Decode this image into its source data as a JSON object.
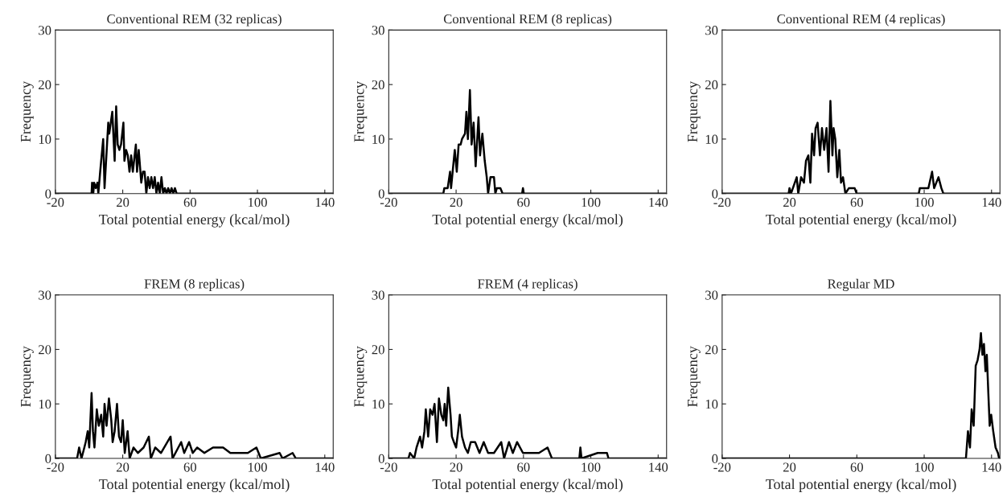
{
  "chart_data": [
    {
      "type": "line",
      "title": "Conventional REM (32 replicas)",
      "xlabel": "Total potential energy (kcal/mol)",
      "ylabel": "Frequency",
      "xlim": [
        -20,
        145
      ],
      "xticks": [
        -20,
        20,
        60,
        100,
        140
      ],
      "ylim": [
        0,
        30
      ],
      "yticks": [
        0,
        10,
        20,
        30
      ],
      "grid": false,
      "legend": false,
      "series": [
        {
          "color": "#000000",
          "x": [
            -20,
            1.5,
            1.8,
            2.5,
            3,
            4,
            5,
            5.5,
            6.6,
            8.4,
            9.2,
            11.4,
            12,
            13.8,
            15.2,
            16.1,
            17,
            18,
            19,
            20.4,
            21,
            22,
            23,
            24,
            25,
            26,
            27.8,
            28.5,
            29.5,
            30.5,
            31,
            32,
            33,
            34,
            35,
            36,
            37,
            38,
            39,
            40,
            41,
            42,
            43,
            44,
            45,
            46,
            47,
            48,
            49,
            50,
            51,
            52,
            145
          ],
          "values": [
            0,
            0,
            2,
            0,
            2,
            1,
            2,
            0,
            4,
            10,
            1,
            13,
            11,
            15,
            6,
            16,
            9,
            8,
            9,
            13,
            6,
            8,
            7,
            4,
            7,
            4,
            9,
            4,
            8,
            4,
            2,
            4,
            4,
            0,
            3,
            1,
            3,
            1,
            3,
            0,
            2,
            0,
            3,
            0,
            1,
            0,
            1,
            0,
            1,
            0,
            1,
            0,
            0
          ]
        }
      ]
    },
    {
      "type": "line",
      "title": "Conventional REM (8 replicas)",
      "xlabel": "Total potential energy (kcal/mol)",
      "ylabel": "Frequency",
      "xlim": [
        -20,
        145
      ],
      "xticks": [
        -20,
        20,
        60,
        100,
        140
      ],
      "ylim": [
        0,
        30
      ],
      "yticks": [
        0,
        10,
        20,
        30
      ],
      "grid": false,
      "legend": false,
      "series": [
        {
          "color": "#000000",
          "x": [
            -20,
            12.4,
            13,
            15,
            16.4,
            17,
            19.2,
            20.4,
            21.5,
            22.7,
            23.5,
            25.3,
            26.1,
            27,
            28.2,
            29.2,
            30.4,
            31.6,
            33.3,
            34.2,
            35.6,
            37,
            38.2,
            39,
            40.4,
            42.5,
            43.3,
            44.2,
            46.3,
            47.6,
            59.2,
            59.7,
            60.2,
            145
          ],
          "values": [
            0,
            0,
            1,
            1,
            4,
            1,
            8,
            4,
            9,
            9,
            10,
            11,
            15,
            10,
            19,
            9,
            13,
            5,
            14,
            7,
            11,
            6,
            3,
            0,
            3,
            3,
            0,
            1,
            1,
            0,
            0,
            1,
            0,
            0
          ]
        }
      ]
    },
    {
      "type": "line",
      "title": "Conventional REM (4 replicas)",
      "xlabel": "Total potential energy (kcal/mol)",
      "ylabel": "Frequency",
      "xlim": [
        -20,
        145
      ],
      "xticks": [
        -20,
        20,
        60,
        100,
        140
      ],
      "ylim": [
        0,
        30
      ],
      "yticks": [
        0,
        10,
        20,
        30
      ],
      "grid": false,
      "legend": false,
      "series": [
        {
          "color": "#000000",
          "x": [
            -20,
            19.5,
            20,
            20.9,
            24.3,
            25.2,
            26.9,
            28.6,
            29.8,
            31.2,
            32.4,
            33.4,
            34.6,
            35.5,
            36.7,
            38.1,
            39.3,
            40.6,
            42,
            43.2,
            44.3,
            45.5,
            46.2,
            47.2,
            48.4,
            49.6,
            50.6,
            51.8,
            53.2,
            55.3,
            58.7,
            59.9,
            96.8,
            97.4,
            100.8,
            102.5,
            104.7,
            105.9,
            108.5,
            110.2,
            111.4,
            145
          ],
          "values": [
            0,
            0,
            1,
            0,
            3,
            0,
            3,
            2,
            6,
            7,
            2,
            11,
            7,
            12,
            13,
            7,
            12,
            8,
            12,
            4,
            17,
            7,
            12,
            10,
            3,
            8,
            2,
            3,
            0,
            1,
            1,
            0,
            0,
            1,
            1,
            1,
            4,
            1,
            3,
            1,
            0,
            0
          ]
        }
      ]
    },
    {
      "type": "line",
      "title": "FREM (8 replicas)",
      "xlabel": "Total potential energy (kcal/mol)",
      "ylabel": "Frequency",
      "xlim": [
        -20,
        145
      ],
      "xticks": [
        -20,
        20,
        60,
        100,
        140
      ],
      "ylim": [
        0,
        30
      ],
      "yticks": [
        0,
        10,
        20,
        30
      ],
      "grid": false,
      "legend": false,
      "series": [
        {
          "color": "#000000",
          "x": [
            -20,
            -7.1,
            -5.9,
            -4.5,
            -2.8,
            -2,
            -0.8,
            0.1,
            1.5,
            2.3,
            3.2,
            4.6,
            5.8,
            7.2,
            8.4,
            9.2,
            10.4,
            11.8,
            13.2,
            14,
            15.2,
            16.6,
            17.8,
            19,
            20,
            21.2,
            22.9,
            24.1,
            26.4,
            29,
            32.4,
            35.5,
            36.7,
            39.3,
            42.7,
            48.4,
            49.6,
            54.7,
            56.5,
            59.4,
            61.6,
            64.2,
            68.5,
            73.6,
            79.6,
            83.9,
            94.3,
            99.4,
            102,
            113.2,
            114.9,
            120.9,
            122.8,
            145
          ],
          "values": [
            0,
            0,
            2,
            0,
            2,
            3,
            5,
            2,
            12,
            5,
            2,
            9,
            6,
            8,
            4,
            10,
            6,
            11,
            7,
            3,
            5,
            10,
            4,
            3,
            7,
            1,
            5,
            0,
            2,
            1,
            2,
            4,
            0,
            2,
            1,
            4,
            0,
            3,
            1,
            3,
            1,
            2,
            1,
            2,
            2,
            1,
            1,
            2,
            0,
            1,
            0,
            1,
            0,
            0
          ]
        }
      ]
    },
    {
      "type": "line",
      "title": "FREM (4 replicas)",
      "xlabel": "Total potential energy (kcal/mol)",
      "ylabel": "Frequency",
      "xlim": [
        -20,
        145
      ],
      "xticks": [
        -20,
        20,
        60,
        100,
        140
      ],
      "ylim": [
        0,
        30
      ],
      "yticks": [
        0,
        10,
        20,
        30
      ],
      "grid": false,
      "legend": false,
      "series": [
        {
          "color": "#000000",
          "x": [
            -20,
            -8.3,
            -7.4,
            -4.9,
            -3.5,
            -1.4,
            -0.2,
            1.2,
            2,
            3.4,
            4.6,
            6,
            7.2,
            8.6,
            9.8,
            11.2,
            12.4,
            13.2,
            14.1,
            15.3,
            16.7,
            17.5,
            18.7,
            20,
            21.2,
            22.2,
            23.5,
            25.3,
            27,
            28.7,
            31.3,
            33.9,
            36.4,
            39,
            42.5,
            46.8,
            48.5,
            51.4,
            53.7,
            56.2,
            59.7,
            63.1,
            69.2,
            74.3,
            76.9,
            93.2,
            93.8,
            94.5,
            104.1,
            109.6,
            110.5,
            145
          ],
          "values": [
            0,
            0,
            1,
            0,
            2,
            4,
            2,
            5,
            9,
            4,
            9,
            8,
            10,
            3,
            11,
            8,
            7,
            10,
            6,
            13,
            8,
            4,
            3,
            2,
            5,
            8,
            4,
            2,
            1,
            3,
            3,
            1,
            3,
            1,
            1,
            3,
            0,
            3,
            1,
            3,
            1,
            1,
            1,
            2,
            0,
            0,
            2,
            0,
            1,
            1,
            0,
            0
          ]
        }
      ]
    },
    {
      "type": "line",
      "title": "Regular MD",
      "xlabel": "Total potential energy (kcal/mol)",
      "ylabel": "Frequency",
      "xlim": [
        -20,
        145
      ],
      "xticks": [
        -20,
        20,
        60,
        100,
        140
      ],
      "ylim": [
        0,
        30
      ],
      "yticks": [
        0,
        10,
        20,
        30
      ],
      "grid": false,
      "legend": false,
      "series": [
        {
          "color": "#000000",
          "x": [
            -20,
            124.8,
            126,
            127.2,
            128.2,
            129.4,
            130.6,
            131.7,
            132.9,
            133.7,
            134.6,
            135.5,
            136.4,
            137.2,
            138.1,
            138.9,
            139.8,
            141,
            142.4,
            143.8,
            144.5
          ],
          "values": [
            0,
            0,
            5,
            2,
            9,
            6,
            17,
            18,
            20,
            23,
            19,
            21,
            16,
            19,
            12,
            6,
            8,
            5,
            2,
            1,
            0
          ]
        }
      ]
    }
  ]
}
